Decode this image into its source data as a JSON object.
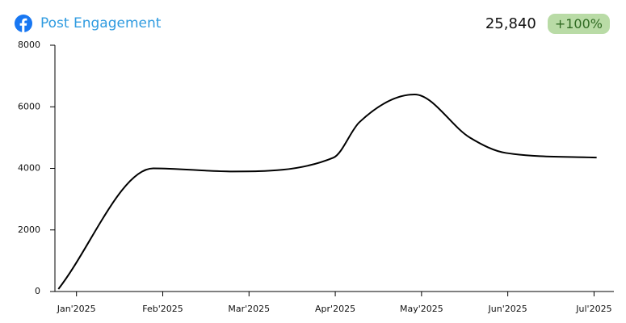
{
  "header": {
    "title": "Post Engagement",
    "total": "25,840",
    "change": "+100%"
  },
  "chart_data": {
    "type": "line",
    "x": [
      -0.21,
      0.89,
      1.81,
      2.98,
      3.28,
      3.92,
      4.56,
      4.98,
      6.03
    ],
    "series": [
      {
        "name": "Post Engagement",
        "color": "#000000",
        "values": [
          80,
          4000,
          3900,
          4350,
          5500,
          6400,
          5000,
          4500,
          4350
        ]
      }
    ],
    "xlim": [
      -0.25,
      6.23
    ],
    "xticks": [
      {
        "value": 0,
        "label": "Jan'2025"
      },
      {
        "value": 1,
        "label": "Feb'2025"
      },
      {
        "value": 2,
        "label": "Mar'2025"
      },
      {
        "value": 3,
        "label": "Apr'2025"
      },
      {
        "value": 4,
        "label": "May'2025"
      },
      {
        "value": 5,
        "label": "Jun'2025"
      },
      {
        "value": 6,
        "label": "Jul'2025"
      }
    ],
    "ylim": [
      0,
      8000
    ],
    "yticks": [
      0,
      2000,
      4000,
      6000,
      8000
    ],
    "smooth": true
  }
}
